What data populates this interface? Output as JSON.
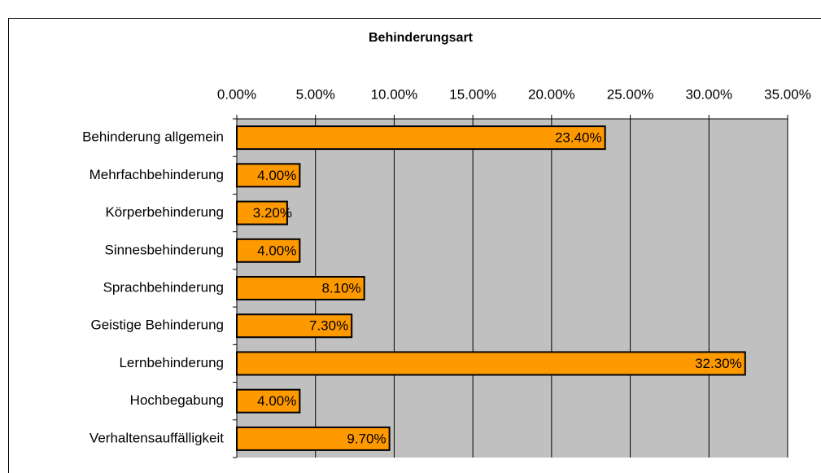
{
  "chart_data": {
    "type": "bar",
    "orientation": "horizontal",
    "title": "Behinderungsart",
    "categories": [
      "Behinderung allgemein",
      "Mehrfachbehinderung",
      "Körperbehinderung",
      "Sinnesbehinderung",
      "Sprachbehinderung",
      "Geistige Behinderung",
      "Lernbehinderung",
      "Hochbegabung",
      "Verhaltensauffälligkeit"
    ],
    "values": [
      23.4,
      4.0,
      3.2,
      4.0,
      8.1,
      7.3,
      32.3,
      4.0,
      9.7
    ],
    "value_labels": [
      "23.40%",
      "4.00%",
      "3.20%",
      "4.00%",
      "8.10%",
      "7.30%",
      "32.30%",
      "4.00%",
      "9.70%"
    ],
    "color": "#ff9900",
    "xlim": [
      0,
      35
    ],
    "xticks": [
      {
        "value": 0,
        "label": "0.00%"
      },
      {
        "value": 5,
        "label": "5.00%"
      },
      {
        "value": 10,
        "label": "10.00%"
      },
      {
        "value": 15,
        "label": "15.00%"
      },
      {
        "value": 20,
        "label": "20.00%"
      },
      {
        "value": 25,
        "label": "25.00%"
      },
      {
        "value": 30,
        "label": "30.00%"
      },
      {
        "value": 35,
        "label": "35.00%"
      }
    ],
    "grid": true
  }
}
